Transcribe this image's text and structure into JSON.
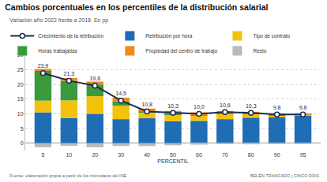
{
  "chart_data": {
    "type": "bar",
    "title": "Cambios porcentuales en los percentiles de la distribución salarial",
    "subtitle": "Variación año 2022 frente a 2018. En pp",
    "x_label": "PERCENTIL",
    "categories": [
      "5",
      "10",
      "20",
      "30",
      "40",
      "50",
      "60",
      "70",
      "80",
      "90",
      "95"
    ],
    "series": [
      {
        "name": "Retribución por hora",
        "type": "bar",
        "color": "#1f6db5",
        "values": [
          10.5,
          8.6,
          10.0,
          8.2,
          8.5,
          7.5,
          7.6,
          8.2,
          8.7,
          9.0,
          9.4
        ]
      },
      {
        "name": "Tipo de contrato",
        "type": "bar",
        "color": "#f4c20d",
        "values": [
          4.0,
          6.0,
          6.0,
          4.6,
          2.1,
          2.3,
          1.8,
          1.7,
          1.2,
          0.5,
          0.2
        ]
      },
      {
        "name": "Horas trabajadas",
        "type": "bar",
        "color": "#3c9a3c",
        "values": [
          10.3,
          6.6,
          4.0,
          1.5,
          0.2,
          0.2,
          0.1,
          0.1,
          0.1,
          0.1,
          0.0
        ]
      },
      {
        "name": "Propiedad del centro de trabajo",
        "type": "bar",
        "color": "#f08a1c",
        "values": [
          0.5,
          1.0,
          1.0,
          1.2,
          1.0,
          1.0,
          1.0,
          0.9,
          0.7,
          0.5,
          0.3
        ]
      },
      {
        "name": "Resto",
        "type": "bar",
        "color": "#b7babd",
        "values": [
          -1.4,
          -0.9,
          -1.4,
          -1.0,
          -1.0,
          -0.7,
          -0.5,
          -0.3,
          -0.4,
          -0.3,
          -0.1
        ]
      },
      {
        "name": "Crecimiento de la retribución",
        "type": "line",
        "color": "#1d2b4f",
        "marker": "circle",
        "values": [
          23.9,
          21.3,
          19.6,
          14.5,
          10.8,
          10.3,
          10.0,
          10.6,
          10.3,
          9.8,
          9.8
        ],
        "value_labels": [
          "23,9",
          "21,3",
          "19,6",
          "14,5",
          "10,8",
          "10,3",
          "10,0",
          "10,6",
          "10,3",
          "9,8",
          "9,8"
        ]
      }
    ],
    "ylim": [
      -2.5,
      30
    ],
    "yticks": [
      0,
      5,
      10,
      15,
      20,
      25,
      30
    ],
    "grid": true,
    "stacked": true,
    "data_labels": true,
    "legend": "top",
    "annotations": [
      "Fuente: elaboración propia a partir de los microdatos del INE",
      "BELÉN TRANCADO | CINCO DÍAS"
    ]
  }
}
